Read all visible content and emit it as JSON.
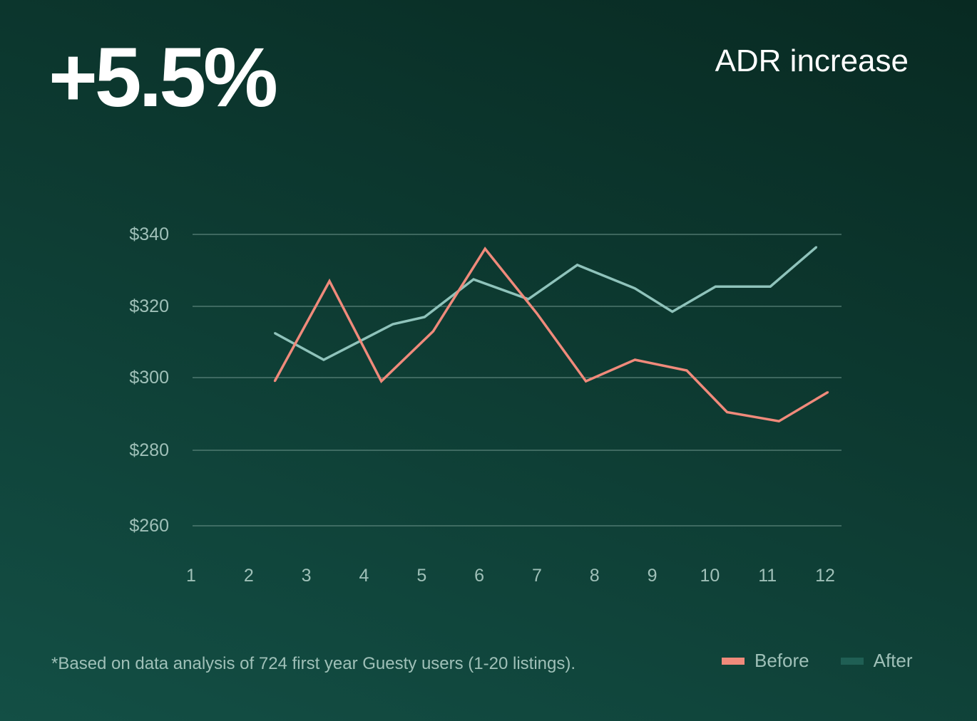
{
  "headline_stat": "+5.5%",
  "headline_label": "ADR increase",
  "footnote": "*Based on data analysis of 724 first year Guesty users (1-20 listings).",
  "colors": {
    "before": "#f08a7b",
    "after": "#8fc3bb",
    "after_swatch": "#1f5f54",
    "grid": "#6e958c",
    "tick": "#9fc0b8"
  },
  "chart_data": {
    "type": "line",
    "title": "ADR increase",
    "xlabel": "",
    "ylabel": "",
    "categories": [
      "1",
      "2",
      "3",
      "4",
      "5",
      "6",
      "7",
      "8",
      "9",
      "10",
      "11",
      "12"
    ],
    "x_range": [
      1,
      12
    ],
    "y_ticks": [
      {
        "label": "$340",
        "value": 340
      },
      {
        "label": "$320",
        "value": 320
      },
      {
        "label": "$300",
        "value": 300
      },
      {
        "label": "$280",
        "value": 280
      },
      {
        "label": "$260",
        "value": 260
      }
    ],
    "series": [
      {
        "name": "Before",
        "x": [
          2.45,
          3.4,
          4.3,
          5.2,
          6.1,
          7.0,
          7.85,
          8.7,
          9.6,
          10.3,
          11.2,
          12.05
        ],
        "values": [
          299,
          327,
          299,
          313,
          336,
          318,
          299,
          305,
          302,
          290.5,
          288,
          296
        ]
      },
      {
        "name": "After",
        "x": [
          2.45,
          3.3,
          4.5,
          5.05,
          5.9,
          6.85,
          7.7,
          8.7,
          9.35,
          10.1,
          11.05,
          11.85
        ],
        "values": [
          312.5,
          305,
          315,
          317,
          327.5,
          322,
          331.5,
          325,
          318.5,
          325.5,
          325.5,
          336.5
        ]
      }
    ],
    "legend": [
      "Before",
      "After"
    ],
    "legend_position": "bottom-right",
    "grid": true
  }
}
